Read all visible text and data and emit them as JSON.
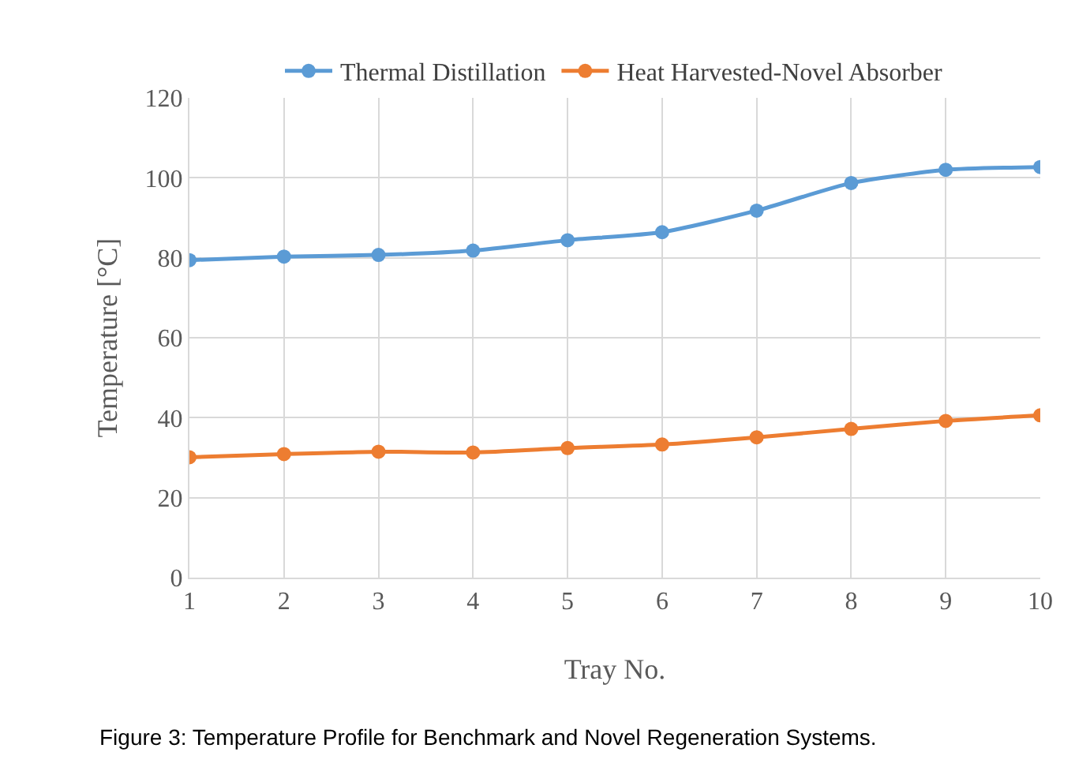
{
  "chart_data": {
    "type": "line",
    "xlabel": "Tray No.",
    "ylabel": "Temperature [°C]",
    "x": [
      1,
      2,
      3,
      4,
      5,
      6,
      7,
      8,
      9,
      10
    ],
    "xlim": [
      1,
      10
    ],
    "xticks": [
      1,
      2,
      3,
      4,
      5,
      6,
      7,
      8,
      9,
      10
    ],
    "ylim": [
      0,
      120
    ],
    "yticks": [
      0,
      20,
      40,
      60,
      80,
      100,
      120
    ],
    "series": [
      {
        "name": "Thermal Distillation",
        "color": "#5b9bd5",
        "values": [
          79.4,
          80.3,
          80.7,
          81.8,
          84.4,
          86.4,
          91.8,
          98.7,
          102,
          102.7
        ]
      },
      {
        "name": "Heat Harvested-Novel Absorber",
        "color": "#ed7d31",
        "values": [
          30.1,
          30.9,
          31.5,
          31.3,
          32.4,
          33.3,
          35.1,
          37.2,
          39.2,
          40.6
        ]
      }
    ],
    "grid": true,
    "legend": "top",
    "marker": "circle",
    "line_style": "solid",
    "annotations": [
      "Figure 3: Temperature Profile for Benchmark and Novel Regeneration Systems."
    ]
  }
}
